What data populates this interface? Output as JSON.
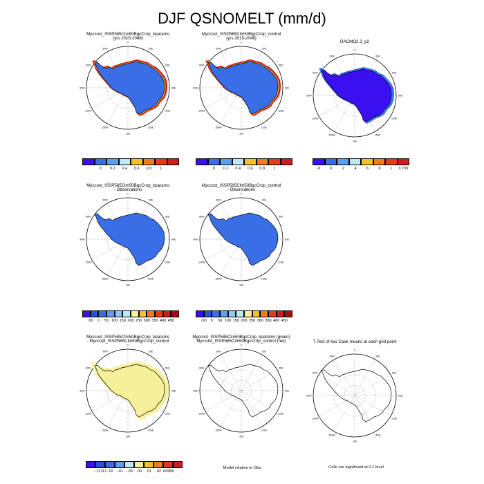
{
  "title": "DJF QSNOMELT (mm/d)",
  "panels": [
    {
      "id": "p1",
      "title1": "Myccost_ISSP585Clm50BgcCrop_kparams",
      "title2": "(yrs 2015-2048)",
      "fill": "#3a6ee6",
      "style": "coast-red"
    },
    {
      "id": "p2",
      "title1": "Myccost_ISSP585Clm50BgcCrop_control",
      "title2": "(yrs 2015-2048)",
      "fill": "#3a6ee6",
      "style": "coast-red"
    },
    {
      "id": "p3",
      "title1": "RACMO2.3_p2",
      "title2": "",
      "fill": "#3b10f0",
      "style": "racmo"
    },
    {
      "id": "p4",
      "title1": "Myccost_ISSP585Clm50BgcCrop_kparams",
      "title2": "- Observations",
      "fill": "#3a6ee6",
      "style": "plain"
    },
    {
      "id": "p5",
      "title1": "Myccost_ISSP585Clm50BgcCrop_control",
      "title2": "- Observations",
      "fill": "#3a6ee6",
      "style": "plain"
    },
    {
      "id": "p6",
      "title1": "Myccost_ISSP585Clm50BgcCrop_kparams",
      "title2": "- Myccost_ISSP585Clm50BgcCrop_control",
      "fill": "#f7f09a",
      "style": "diff"
    },
    {
      "id": "p7",
      "title1": "Myccost_ISSP585Clm50BgcCrop_kparams (green)",
      "title2": "Myccost_ISSP585Clm50BgcCrop_control (red)",
      "fill": "none",
      "style": "outline"
    },
    {
      "id": "p8",
      "title1": "T-Test of two Case means at each grid point",
      "title2": "",
      "fill": "none",
      "style": "outline"
    }
  ],
  "lon_labels": [
    "0",
    "30E",
    "60E",
    "90E",
    "120E",
    "150E",
    "180",
    "150W",
    "120W",
    "90W",
    "60W",
    "30W"
  ],
  "colorbars": [
    {
      "id": "cb1",
      "colors": [
        "#3b10f0",
        "#3a6ee6",
        "#5aa0f0",
        "#bde8f5",
        "#f5c02a",
        "#f07a1e",
        "#e83a1a",
        "#c81e1e"
      ],
      "labels": [
        "0",
        "0.2",
        "0.4",
        "0.6",
        "0.8",
        "1"
      ]
    },
    {
      "id": "cb2",
      "colors": [
        "#3b10f0",
        "#3a6ee6",
        "#5aa0f0",
        "#bde8f5",
        "#f5c02a",
        "#f07a1e",
        "#e83a1a",
        "#c81e1e"
      ],
      "labels": [
        "0",
        "0.2",
        "0.4",
        "0.6",
        "0.8",
        "1"
      ]
    },
    {
      "id": "cb3",
      "colors": [
        "#3b10f0",
        "#3a6ee6",
        "#5aa0f0",
        "#bde8f5",
        "#f5c02a",
        "#f07a1e",
        "#e83a1a",
        "#c81e1e"
      ],
      "labels": [
        "-0",
        "0",
        ".2",
        ".4",
        ".6",
        ".8",
        "1",
        "3.703"
      ]
    },
    {
      "id": "cb4",
      "colors": [
        "#3b10f0",
        "#2850e0",
        "#3a6ee6",
        "#5aa0f0",
        "#8ccaf0",
        "#bde8f5",
        "#f7f09a",
        "#f5c02a",
        "#f07a1e",
        "#e83a1a",
        "#c81e1e",
        "#a01010"
      ],
      "labels": [
        "-50",
        "0",
        "50",
        "100",
        "150",
        "200",
        "250",
        "300",
        "350",
        "400",
        "450"
      ]
    },
    {
      "id": "cb5",
      "colors": [
        "#3b10f0",
        "#2850e0",
        "#3a6ee6",
        "#5aa0f0",
        "#8ccaf0",
        "#bde8f5",
        "#f7f09a",
        "#f5c02a",
        "#f07a1e",
        "#e83a1a",
        "#c81e1e",
        "#a01010"
      ],
      "labels": [
        "-50",
        "0",
        "50",
        "100",
        "150",
        "200",
        "250",
        "300",
        "350",
        "400",
        "450"
      ]
    },
    {
      "id": "cb6",
      "colors": [
        "#3b10f0",
        "#2850e0",
        "#3a6ee6",
        "#5aa0f0",
        "#bde8f5",
        "#f7f09a",
        "#f5c02a",
        "#f07a1e",
        "#e83a1a",
        "#c81e1e"
      ],
      "labels": [
        "-.12117",
        "-.02",
        "-.01",
        "-.00",
        ".00",
        ".01",
        ".02",
        ".60589"
      ]
    }
  ],
  "notes": {
    "model_relative": "Model relative to Obs",
    "significance": "Cells are significant at 0.1 level"
  }
}
